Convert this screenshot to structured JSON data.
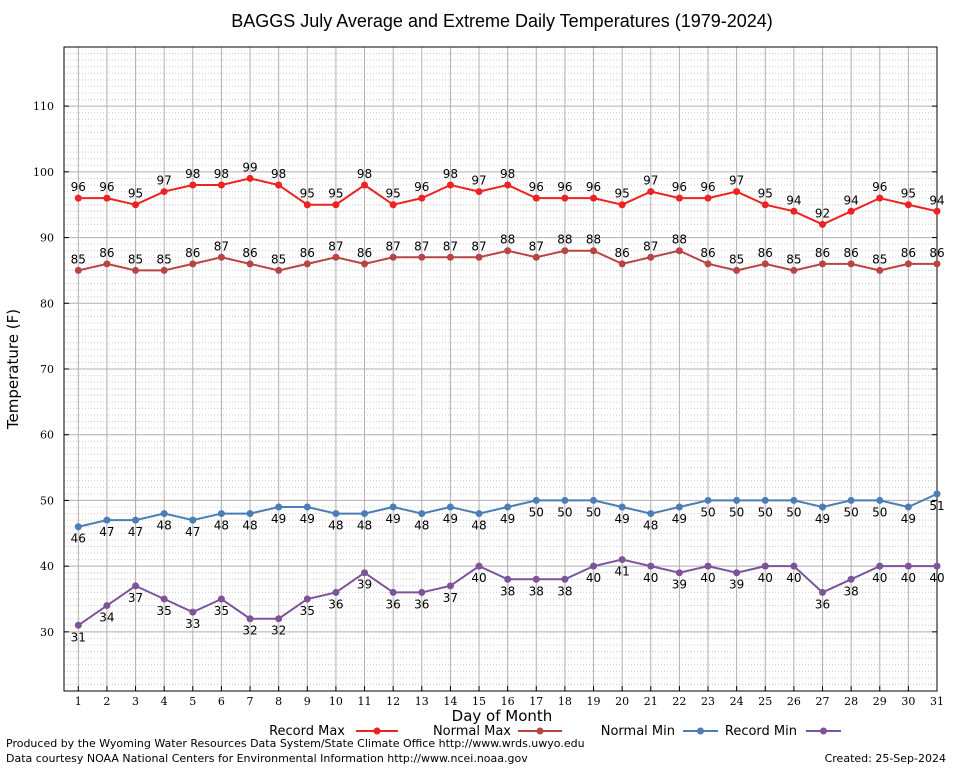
{
  "chart_data": {
    "type": "line",
    "title": "BAGGS July Average and Extreme Daily Temperatures (1979-2024)",
    "xlabel": "Day of Month",
    "ylabel": "Temperature (F)",
    "x": [
      1,
      2,
      3,
      4,
      5,
      6,
      7,
      8,
      9,
      10,
      11,
      12,
      13,
      14,
      15,
      16,
      17,
      18,
      19,
      20,
      21,
      22,
      23,
      24,
      25,
      26,
      27,
      28,
      29,
      30,
      31
    ],
    "xlim": [
      0.5,
      31
    ],
    "ylim": [
      21,
      119
    ],
    "y_ticks": [
      30,
      40,
      50,
      60,
      70,
      80,
      90,
      100,
      110
    ],
    "grid": true,
    "legend_position": "bottom",
    "series": [
      {
        "name": "Record Max",
        "color": "#ee2222",
        "values": [
          96,
          96,
          95,
          97,
          98,
          98,
          99,
          98,
          95,
          95,
          98,
          95,
          96,
          98,
          97,
          98,
          96,
          96,
          96,
          95,
          97,
          96,
          96,
          97,
          95,
          94,
          92,
          94,
          96,
          95,
          94
        ]
      },
      {
        "name": "Normal Max",
        "color": "#b84444",
        "values": [
          85,
          86,
          85,
          85,
          86,
          87,
          86,
          85,
          86,
          87,
          86,
          87,
          87,
          87,
          87,
          88,
          87,
          88,
          88,
          86,
          87,
          88,
          86,
          85,
          86,
          85,
          86,
          86,
          85,
          86,
          86
        ]
      },
      {
        "name": "Normal Min",
        "color": "#4a7eb5",
        "values": [
          46,
          47,
          47,
          48,
          47,
          48,
          48,
          49,
          49,
          48,
          48,
          49,
          48,
          49,
          48,
          49,
          50,
          50,
          50,
          49,
          48,
          49,
          50,
          50,
          50,
          50,
          49,
          50,
          50,
          49,
          51
        ]
      },
      {
        "name": "Record Min",
        "color": "#7d5499",
        "values": [
          31,
          34,
          37,
          35,
          33,
          35,
          32,
          32,
          35,
          36,
          39,
          36,
          36,
          37,
          40,
          38,
          38,
          38,
          40,
          41,
          40,
          39,
          40,
          39,
          40,
          40,
          36,
          38,
          40,
          40,
          40
        ]
      }
    ]
  },
  "footer": {
    "line1": "Produced by the Wyoming Water Resources Data System/State Climate Office http://www.wrds.uwyo.edu",
    "line2": "Data courtesy NOAA National Centers for Environmental Information http://www.ncei.noaa.gov",
    "created": "Created:  25-Sep-2024"
  }
}
